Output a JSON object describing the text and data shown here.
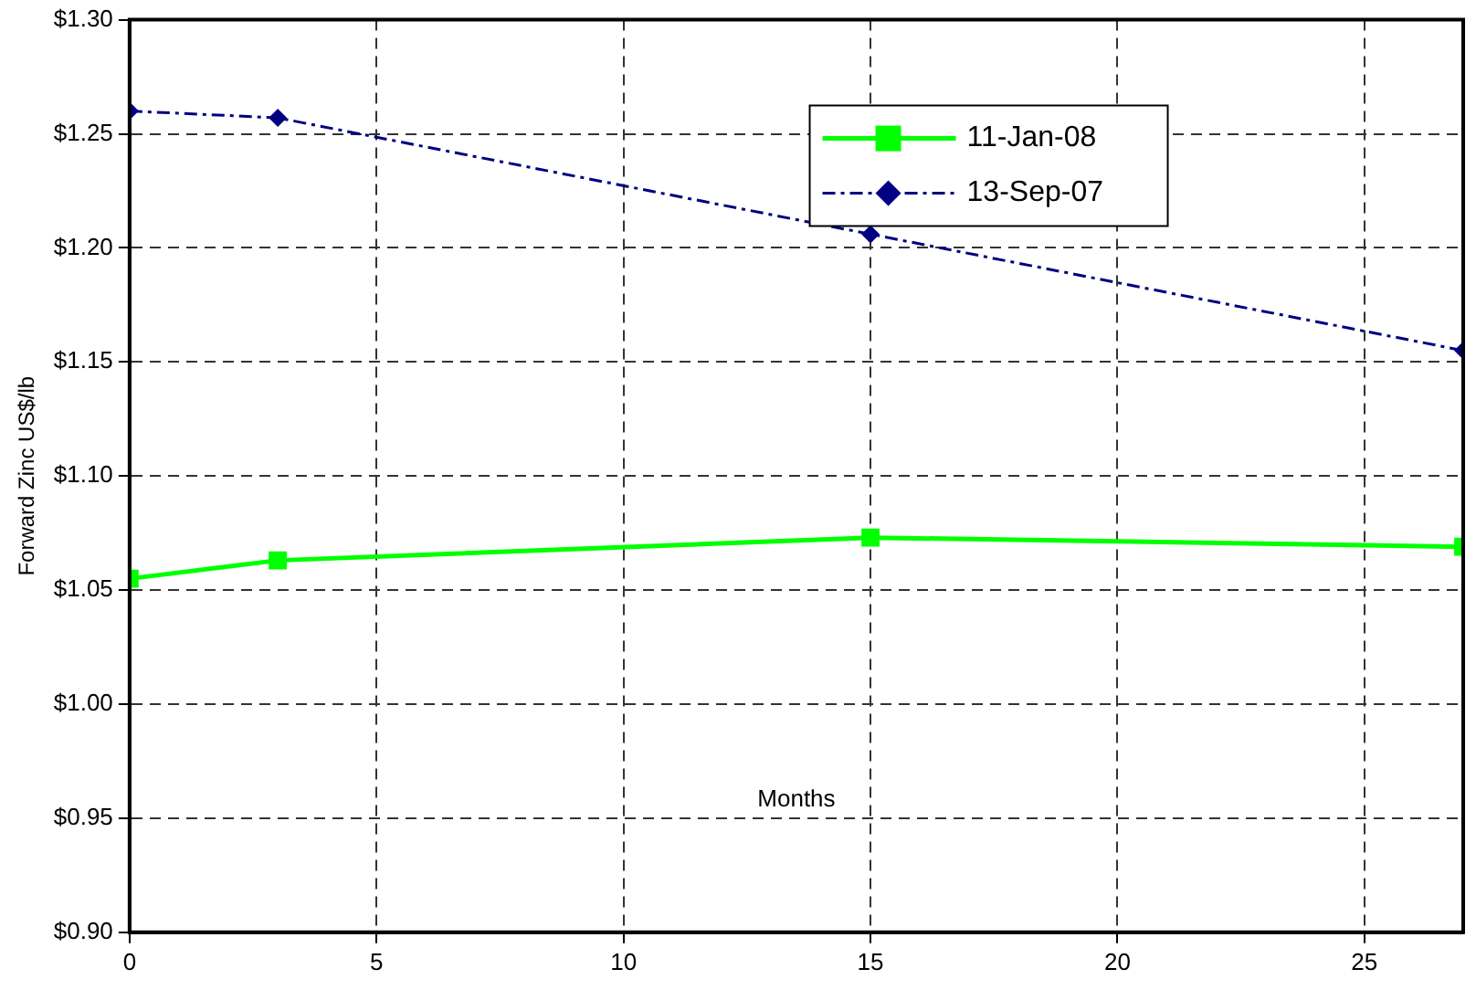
{
  "chart_data": {
    "type": "line",
    "xlabel": "Months",
    "ylabel": "Forward Zinc US$/lb",
    "xlim": [
      0,
      27
    ],
    "xticks": [
      0,
      5,
      10,
      15,
      20,
      25
    ],
    "ylim": [
      0.9,
      1.3
    ],
    "yticks": [
      {
        "value": 0.9,
        "label": "$0.90"
      },
      {
        "value": 0.95,
        "label": "$0.95"
      },
      {
        "value": 1.0,
        "label": "$1.00"
      },
      {
        "value": 1.05,
        "label": "$1.05"
      },
      {
        "value": 1.1,
        "label": "$1.10"
      },
      {
        "value": 1.15,
        "label": "$1.15"
      },
      {
        "value": 1.2,
        "label": "$1.20"
      },
      {
        "value": 1.25,
        "label": "$1.25"
      },
      {
        "value": 1.3,
        "label": "$1.30"
      }
    ],
    "grid": true,
    "legend": "top",
    "series": [
      {
        "name": "11-Jan-08",
        "color": "#00ff00",
        "x": [
          0,
          3,
          15,
          27
        ],
        "values": [
          1.055,
          1.063,
          1.073,
          1.069
        ],
        "marker": "square",
        "line_style": "solid"
      },
      {
        "name": "13-Sep-07",
        "color": "#000080",
        "x": [
          0,
          3,
          15,
          27
        ],
        "values": [
          1.26,
          1.257,
          1.206,
          1.155
        ],
        "marker": "diamond",
        "line_style": "dashed"
      }
    ]
  }
}
